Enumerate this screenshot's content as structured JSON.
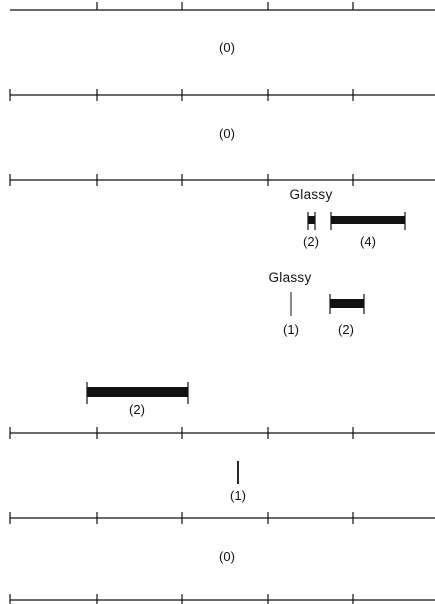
{
  "panels": [
    {
      "id": "panel-1",
      "labels": [
        "(0)"
      ]
    },
    {
      "id": "panel-2",
      "labels": [
        "(0)"
      ]
    },
    {
      "id": "panel-3",
      "title": "Glassy",
      "labels": [
        "(2)",
        "(4)"
      ]
    },
    {
      "id": "panel-4",
      "title": "Glassy",
      "labels": [
        "(1)",
        "(2)"
      ]
    },
    {
      "id": "panel-5",
      "labels": [
        "(2)"
      ]
    },
    {
      "id": "panel-6",
      "labels": [
        "(1)"
      ]
    },
    {
      "id": "panel-7",
      "labels": [
        "(0)"
      ]
    }
  ],
  "colors": {
    "ink": "#111111",
    "background": "#ffffff"
  }
}
